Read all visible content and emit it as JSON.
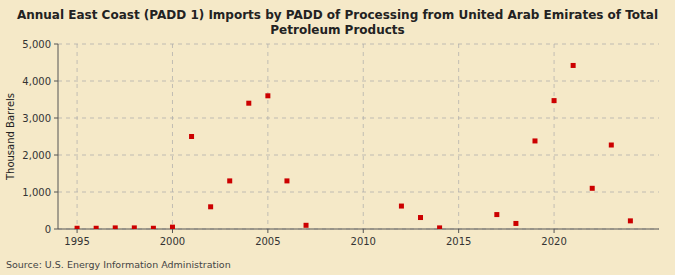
{
  "chart_data": {
    "type": "scatter",
    "title": "Annual East Coast (PADD 1) Imports by PADD of Processing from United Arab Emirates of Total\nPetroleum Products",
    "ylabel": "Thousand Barrels",
    "source": "Source: U.S. Energy Information Administration",
    "x": [
      1995,
      1996,
      1997,
      1998,
      1999,
      2000,
      2001,
      2002,
      2003,
      2004,
      2005,
      2006,
      2007,
      2012,
      2013,
      2014,
      2017,
      2018,
      2019,
      2020,
      2021,
      2022,
      2023,
      2024
    ],
    "values": [
      20,
      20,
      30,
      30,
      20,
      50,
      2500,
      600,
      1300,
      3400,
      3600,
      1300,
      100,
      620,
      310,
      30,
      390,
      150,
      2380,
      3470,
      4420,
      1100,
      2270,
      220
    ],
    "color": "#cc0000",
    "marker": "square",
    "xlim": [
      1994.0,
      2025.5
    ],
    "ylim": [
      0,
      5000
    ],
    "xticks": [
      1995,
      2000,
      2005,
      2010,
      2015,
      2020
    ],
    "yticks": [
      0,
      {
        "value": 1000,
        "label": "1,000"
      },
      {
        "value": 2000,
        "label": "2,000"
      },
      {
        "value": 3000,
        "label": "3,000"
      },
      {
        "value": 4000,
        "label": "4,000"
      },
      {
        "value": 5000,
        "label": "5,000"
      }
    ],
    "grid": true
  }
}
